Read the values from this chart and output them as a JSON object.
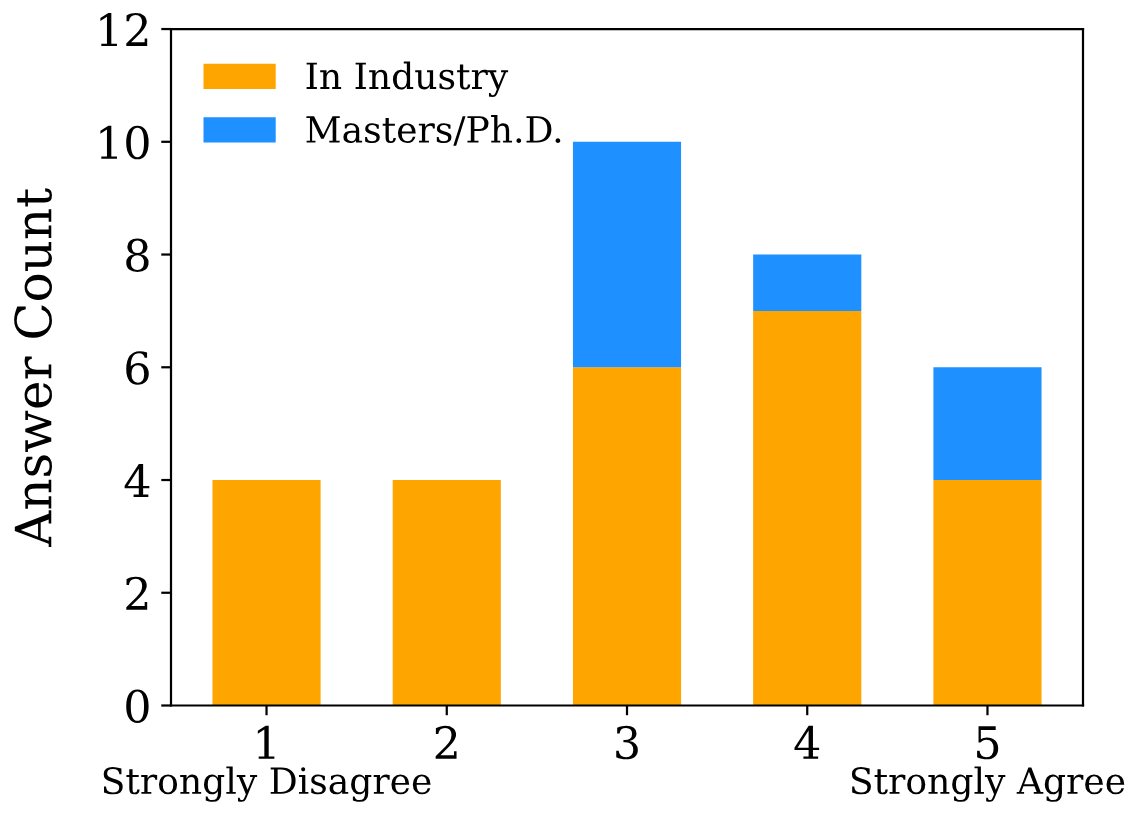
{
  "chart_data": {
    "type": "bar",
    "stacked": true,
    "ylabel": "Answer Count",
    "categories": [
      "1",
      "2",
      "3",
      "4",
      "5"
    ],
    "series": [
      {
        "name": "In Industry",
        "color": "#ffa500",
        "values": [
          4,
          4,
          6,
          7,
          4
        ]
      },
      {
        "name": "Masters/Ph.D.",
        "color": "#1e90ff",
        "values": [
          0,
          0,
          4,
          1,
          2
        ]
      }
    ],
    "ylim": [
      0,
      12
    ],
    "yticks": [
      0,
      2,
      4,
      6,
      8,
      10,
      12
    ],
    "grid": false,
    "legend": "top left",
    "annotations": [
      "Strongly Disagree",
      "Strongly Agree"
    ]
  }
}
